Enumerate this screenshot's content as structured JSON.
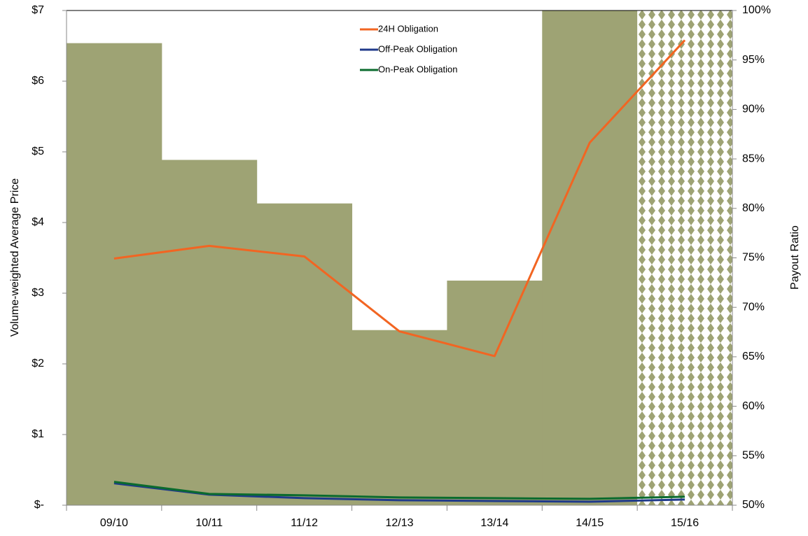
{
  "chart_data": {
    "type": "bar_line",
    "categories": [
      "09/10",
      "10/11",
      "11/12",
      "12/13",
      "13/14",
      "14/15",
      "15/16"
    ],
    "bars": {
      "axis": "y2",
      "color": "#9ea374",
      "values": [
        96.7,
        84.9,
        80.5,
        67.7,
        72.7,
        100,
        100
      ],
      "hatched": [
        false,
        false,
        false,
        false,
        false,
        false,
        true
      ]
    },
    "series": [
      {
        "name": "24H Obligation",
        "color": "#f26522",
        "values": [
          3.49,
          3.67,
          3.52,
          2.46,
          2.11,
          5.13,
          6.58
        ]
      },
      {
        "name": "Off-Peak Obligation",
        "color": "#1f3a8a",
        "values": [
          0.31,
          0.15,
          0.1,
          0.07,
          0.06,
          0.05,
          0.08
        ]
      },
      {
        "name": "On-Peak Obligation",
        "color": "#0b6b2e",
        "values": [
          0.33,
          0.16,
          0.14,
          0.11,
          0.1,
          0.09,
          0.12
        ]
      }
    ],
    "ylabel": "Volume-weighted Average Price",
    "y2label": "Payout Ratio",
    "ylim": [
      0,
      7
    ],
    "yticks": [
      {
        "value": 0,
        "label": "$-"
      },
      {
        "value": 1,
        "label": "$1"
      },
      {
        "value": 2,
        "label": "$2"
      },
      {
        "value": 3,
        "label": "$3"
      },
      {
        "value": 4,
        "label": "$4"
      },
      {
        "value": 5,
        "label": "$5"
      },
      {
        "value": 6,
        "label": "$6"
      },
      {
        "value": 7,
        "label": "$7"
      }
    ],
    "y2lim": [
      50,
      100
    ],
    "y2ticks": [
      {
        "value": 50,
        "label": "50%"
      },
      {
        "value": 55,
        "label": "55%"
      },
      {
        "value": 60,
        "label": "60%"
      },
      {
        "value": 65,
        "label": "65%"
      },
      {
        "value": 70,
        "label": "70%"
      },
      {
        "value": 75,
        "label": "75%"
      },
      {
        "value": 80,
        "label": "80%"
      },
      {
        "value": 85,
        "label": "85%"
      },
      {
        "value": 90,
        "label": "90%"
      },
      {
        "value": 95,
        "label": "95%"
      },
      {
        "value": 100,
        "label": "100%"
      }
    ],
    "legend": "top-center"
  }
}
